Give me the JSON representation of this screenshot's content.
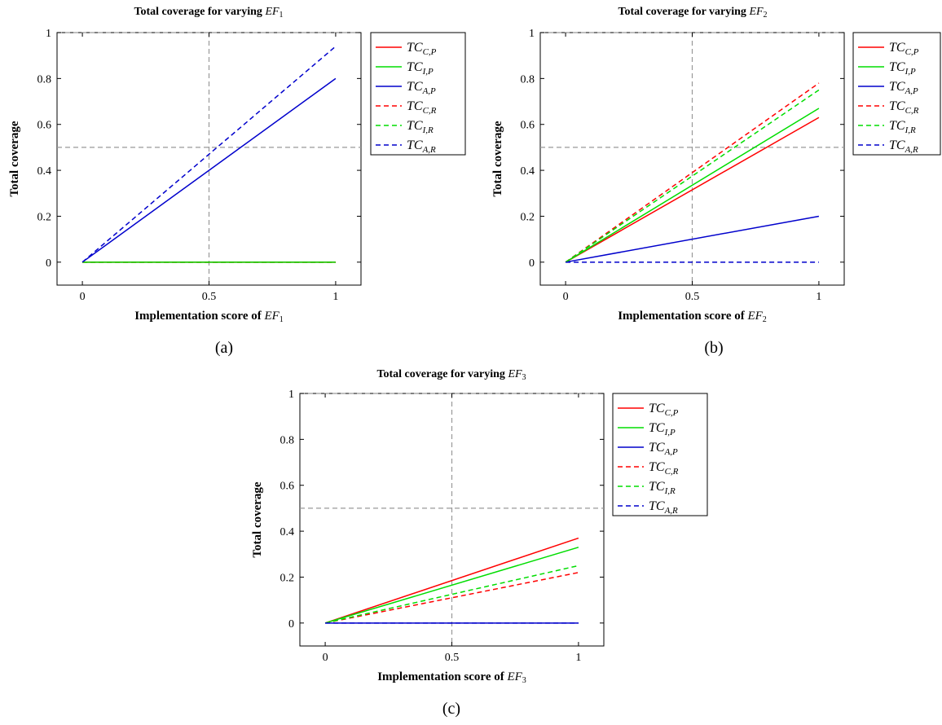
{
  "captions": [
    "(a)",
    "(b)",
    "(c)"
  ],
  "colors": {
    "C": "#ff0000",
    "I": "#00dd00",
    "A": "#0000cc",
    "ref": "#999999"
  },
  "chart_data": [
    {
      "type": "line",
      "title": "Total coverage for varying EF1",
      "title_text": "Total coverage for varying ",
      "title_var": "EF",
      "title_sub": "1",
      "xlabel_text": "Implementation score of ",
      "xlabel_var": "EF",
      "xlabel_sub": "1",
      "ylabel": "Total coverage",
      "xlim": [
        -0.1,
        1.1
      ],
      "ylim": [
        -0.1,
        1.0
      ],
      "xticks": [
        0,
        0.5,
        1
      ],
      "xtick_labels": [
        "0",
        "0.5",
        "1"
      ],
      "yticks": [
        0,
        0.2,
        0.4,
        0.6,
        0.8,
        1
      ],
      "ytick_labels": [
        "0",
        "0.2",
        "0.4",
        "0.6",
        "0.8",
        "1"
      ],
      "reference_lines": {
        "x": 0.5,
        "y": 0.5
      },
      "legend_position": "outside-right",
      "series": [
        {
          "name": "TC_{C,P}",
          "var": "TC",
          "sub": "C,P",
          "color": "#ff0000",
          "dashed": false,
          "x": [
            0,
            1
          ],
          "y": [
            0,
            0
          ]
        },
        {
          "name": "TC_{I,P}",
          "var": "TC",
          "sub": "I,P",
          "color": "#00dd00",
          "dashed": false,
          "x": [
            0,
            1
          ],
          "y": [
            0,
            0
          ]
        },
        {
          "name": "TC_{A,P}",
          "var": "TC",
          "sub": "A,P",
          "color": "#0000cc",
          "dashed": false,
          "x": [
            0,
            1
          ],
          "y": [
            0,
            0.8
          ]
        },
        {
          "name": "TC_{C,R}",
          "var": "TC",
          "sub": "C,R",
          "color": "#ff0000",
          "dashed": true,
          "x": [
            0,
            1
          ],
          "y": [
            0,
            0
          ]
        },
        {
          "name": "TC_{I,R}",
          "var": "TC",
          "sub": "I,R",
          "color": "#00dd00",
          "dashed": true,
          "x": [
            0,
            1
          ],
          "y": [
            0,
            0
          ]
        },
        {
          "name": "TC_{A,R}",
          "var": "TC",
          "sub": "A,R",
          "color": "#0000cc",
          "dashed": true,
          "x": [
            0,
            1
          ],
          "y": [
            0,
            0.94
          ]
        }
      ]
    },
    {
      "type": "line",
      "title": "Total coverage for varying EF2",
      "title_text": "Total coverage for varying ",
      "title_var": "EF",
      "title_sub": "2",
      "xlabel_text": "Implementation score of ",
      "xlabel_var": "EF",
      "xlabel_sub": "2",
      "ylabel": "Total coverage",
      "xlim": [
        -0.1,
        1.1
      ],
      "ylim": [
        -0.1,
        1.0
      ],
      "xticks": [
        0,
        0.5,
        1
      ],
      "xtick_labels": [
        "0",
        "0.5",
        "1"
      ],
      "yticks": [
        0,
        0.2,
        0.4,
        0.6,
        0.8,
        1
      ],
      "ytick_labels": [
        "0",
        "0.2",
        "0.4",
        "0.6",
        "0.8",
        "1"
      ],
      "reference_lines": {
        "x": 0.5,
        "y": 0.5
      },
      "legend_position": "outside-right",
      "series": [
        {
          "name": "TC_{C,P}",
          "var": "TC",
          "sub": "C,P",
          "color": "#ff0000",
          "dashed": false,
          "x": [
            0,
            1
          ],
          "y": [
            0,
            0.63
          ]
        },
        {
          "name": "TC_{I,P}",
          "var": "TC",
          "sub": "I,P",
          "color": "#00dd00",
          "dashed": false,
          "x": [
            0,
            1
          ],
          "y": [
            0,
            0.67
          ]
        },
        {
          "name": "TC_{A,P}",
          "var": "TC",
          "sub": "A,P",
          "color": "#0000cc",
          "dashed": false,
          "x": [
            0,
            1
          ],
          "y": [
            0,
            0.2
          ]
        },
        {
          "name": "TC_{C,R}",
          "var": "TC",
          "sub": "C,R",
          "color": "#ff0000",
          "dashed": true,
          "x": [
            0,
            1
          ],
          "y": [
            0,
            0.78
          ]
        },
        {
          "name": "TC_{I,R}",
          "var": "TC",
          "sub": "I,R",
          "color": "#00dd00",
          "dashed": true,
          "x": [
            0,
            1
          ],
          "y": [
            0,
            0.75
          ]
        },
        {
          "name": "TC_{A,R}",
          "var": "TC",
          "sub": "A,R",
          "color": "#0000cc",
          "dashed": true,
          "x": [
            0,
            1
          ],
          "y": [
            0,
            0
          ]
        }
      ]
    },
    {
      "type": "line",
      "title": "Total coverage for varying EF3",
      "title_text": "Total coverage for varying ",
      "title_var": "EF",
      "title_sub": "3",
      "xlabel_text": "Implementation score of ",
      "xlabel_var": "EF",
      "xlabel_sub": "3",
      "ylabel": "Total coverage",
      "xlim": [
        -0.1,
        1.1
      ],
      "ylim": [
        -0.1,
        1.0
      ],
      "xticks": [
        0,
        0.5,
        1
      ],
      "xtick_labels": [
        "0",
        "0.5",
        "1"
      ],
      "yticks": [
        0,
        0.2,
        0.4,
        0.6,
        0.8,
        1
      ],
      "ytick_labels": [
        "0",
        "0.2",
        "0.4",
        "0.6",
        "0.8",
        "1"
      ],
      "reference_lines": {
        "x": 0.5,
        "y": 0.5
      },
      "legend_position": "outside-right",
      "series": [
        {
          "name": "TC_{C,P}",
          "var": "TC",
          "sub": "C,P",
          "color": "#ff0000",
          "dashed": false,
          "x": [
            0,
            1
          ],
          "y": [
            0,
            0.37
          ]
        },
        {
          "name": "TC_{I,P}",
          "var": "TC",
          "sub": "I,P",
          "color": "#00dd00",
          "dashed": false,
          "x": [
            0,
            1
          ],
          "y": [
            0,
            0.33
          ]
        },
        {
          "name": "TC_{A,P}",
          "var": "TC",
          "sub": "A,P",
          "color": "#0000cc",
          "dashed": false,
          "x": [
            0,
            1
          ],
          "y": [
            0,
            0
          ]
        },
        {
          "name": "TC_{C,R}",
          "var": "TC",
          "sub": "C,R",
          "color": "#ff0000",
          "dashed": true,
          "x": [
            0,
            1
          ],
          "y": [
            0,
            0.22
          ]
        },
        {
          "name": "TC_{I,R}",
          "var": "TC",
          "sub": "I,R",
          "color": "#00dd00",
          "dashed": true,
          "x": [
            0,
            1
          ],
          "y": [
            0,
            0.25
          ]
        },
        {
          "name": "TC_{A,R}",
          "var": "TC",
          "sub": "A,R",
          "color": "#0000cc",
          "dashed": true,
          "x": [
            0,
            1
          ],
          "y": [
            0,
            0
          ]
        }
      ]
    }
  ]
}
